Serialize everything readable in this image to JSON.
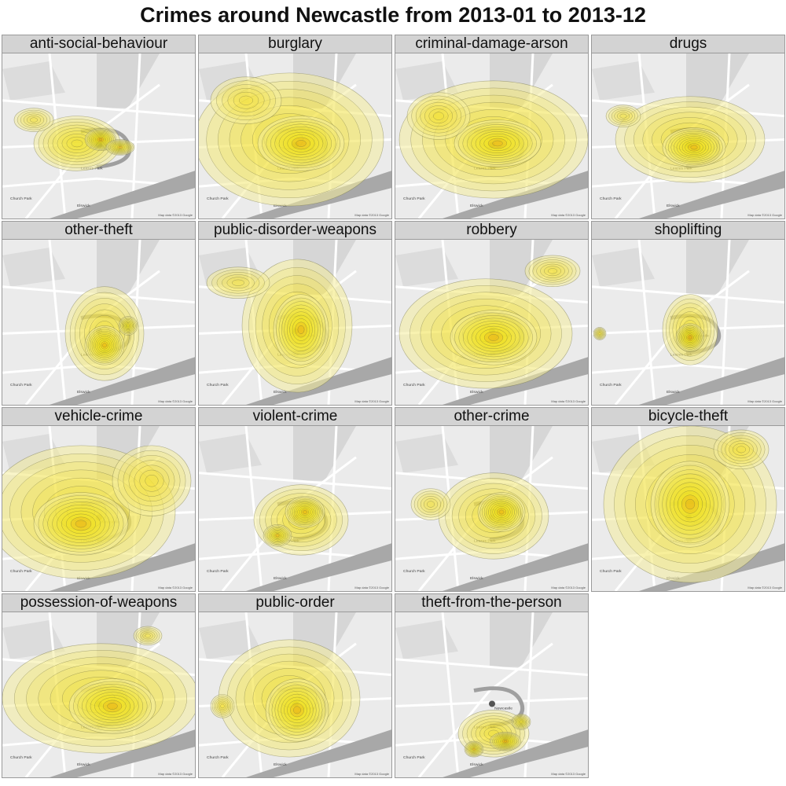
{
  "title": "Crimes around Newcastle from 2013-01 to 2013-12",
  "map": {
    "place_labels": [
      "Newcastle",
      "Leazes Park",
      "Church Park",
      "Elswick"
    ],
    "attribution": "Map data ©2013 Google"
  },
  "colors": {
    "background": "#e9e9e9",
    "strip": "#d3d3d3",
    "density_low": "#f4ec9c",
    "density_mid": "#f3e000",
    "density_high": "#e36c00",
    "contour": "#6b6b3a"
  },
  "panels": [
    {
      "label": "anti-social-behaviour"
    },
    {
      "label": "burglary"
    },
    {
      "label": "criminal-damage-arson"
    },
    {
      "label": "drugs"
    },
    {
      "label": "other-theft"
    },
    {
      "label": "public-disorder-weapons"
    },
    {
      "label": "robbery"
    },
    {
      "label": "shoplifting"
    },
    {
      "label": "vehicle-crime"
    },
    {
      "label": "violent-crime"
    },
    {
      "label": "other-crime"
    },
    {
      "label": "bicycle-theft"
    },
    {
      "label": "possession-of-weapons"
    },
    {
      "label": "public-order"
    },
    {
      "label": "theft-from-the-person"
    }
  ]
}
